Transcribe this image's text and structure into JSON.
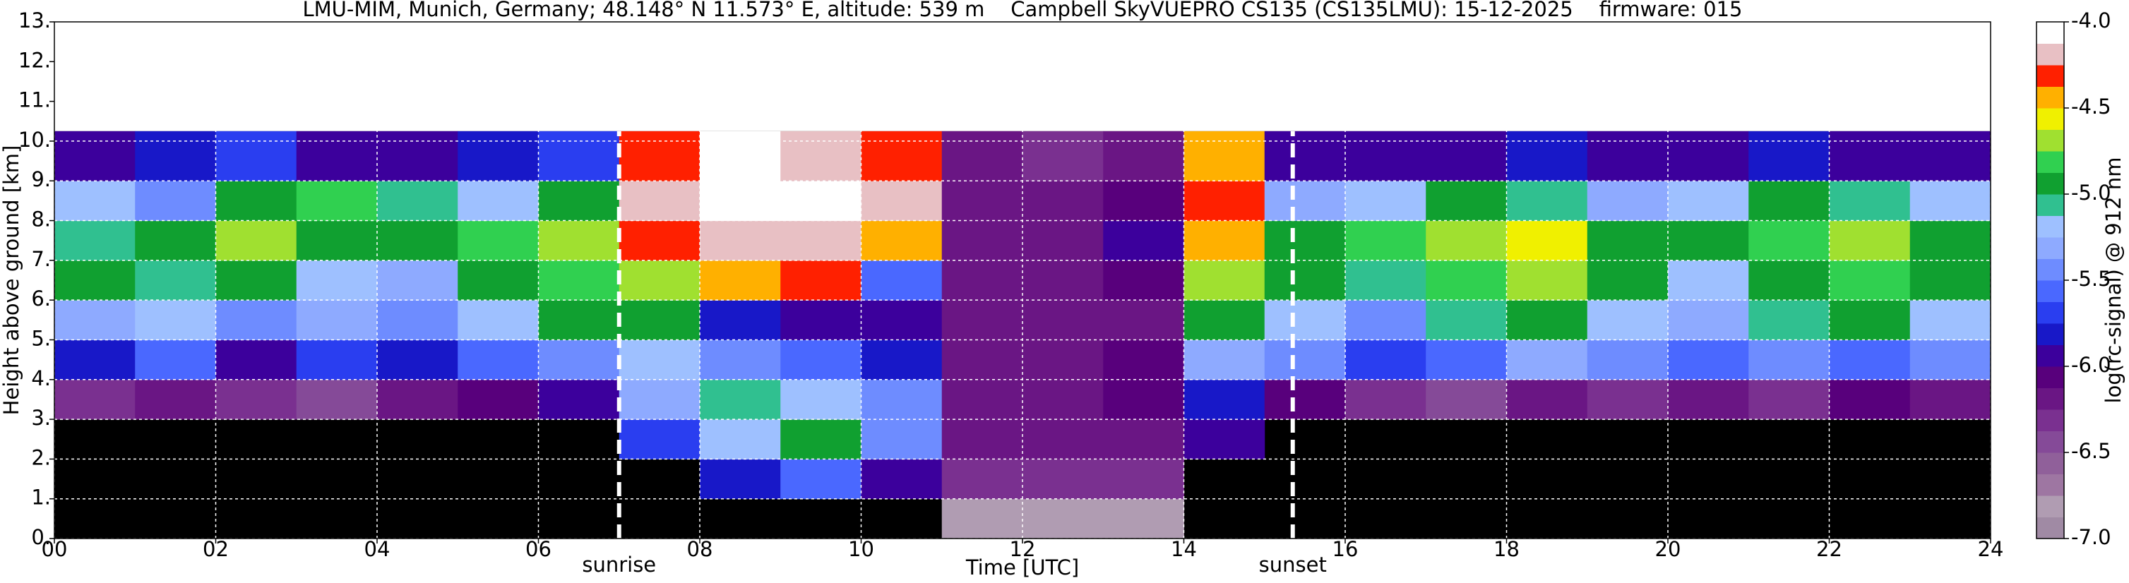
{
  "chart_data": {
    "type": "heatmap",
    "title": "LMU-MIM, Munich, Germany; 48.148° N 11.573° E, altitude: 539 m    Campbell SkyVUEPRO CS135 (CS135LMU): 15-12-2025    firmware: 015",
    "xlabel": "Time [UTC]",
    "ylabel": "Height above ground [km]",
    "xlim": [
      0,
      24
    ],
    "ylim": [
      0,
      13
    ],
    "xticks": [
      {
        "value": 0,
        "label": "00"
      },
      {
        "value": 2,
        "label": "02"
      },
      {
        "value": 4,
        "label": "04"
      },
      {
        "value": 6,
        "label": "06"
      },
      {
        "value": 8,
        "label": "08"
      },
      {
        "value": 10,
        "label": "10"
      },
      12,
      14,
      16,
      18,
      20,
      22,
      24
    ],
    "yticks": [
      {
        "value": 0,
        "label": "0."
      },
      {
        "value": 1,
        "label": "1."
      },
      {
        "value": 2,
        "label": "2."
      },
      {
        "value": 3,
        "label": "3."
      },
      {
        "value": 4,
        "label": "4."
      },
      {
        "value": 5,
        "label": "5."
      },
      {
        "value": 6,
        "label": "6."
      },
      {
        "value": 7,
        "label": "7."
      },
      {
        "value": 8,
        "label": "8."
      },
      {
        "value": 9,
        "label": "9."
      },
      {
        "value": 10,
        "label": "10."
      },
      {
        "value": 11,
        "label": "11."
      },
      {
        "value": 12,
        "label": "12."
      },
      {
        "value": 13,
        "label": "13."
      }
    ],
    "grid": true,
    "grid_color": "#ffffff",
    "no_data_color": "#000000",
    "x_edges": [
      0,
      1,
      2,
      3,
      4,
      5,
      6,
      7,
      8,
      9,
      10,
      11,
      12,
      13,
      14,
      15,
      16,
      17,
      18,
      19,
      20,
      21,
      22,
      23,
      24
    ],
    "y_edges": [
      0,
      1,
      2,
      3,
      4,
      5,
      6,
      7,
      8,
      9,
      10.25
    ],
    "z": [
      [
        null,
        null,
        null,
        null,
        null,
        null,
        null,
        null,
        null,
        null,
        null,
        -6.8,
        -6.8,
        -6.8,
        null,
        null,
        null,
        null,
        null,
        null,
        null,
        null,
        null,
        null
      ],
      [
        null,
        null,
        null,
        null,
        null,
        null,
        null,
        null,
        -5.8,
        -5.6,
        -5.9,
        -6.3,
        -6.3,
        -6.3,
        null,
        null,
        null,
        null,
        null,
        null,
        null,
        null,
        null,
        null
      ],
      [
        null,
        null,
        null,
        null,
        null,
        null,
        null,
        -5.7,
        -5.2,
        -5.0,
        -5.4,
        -6.2,
        -6.2,
        -6.2,
        -6.0,
        null,
        null,
        null,
        null,
        null,
        null,
        null,
        null,
        null
      ],
      [
        -6.3,
        -6.2,
        -6.3,
        -6.4,
        -6.2,
        -6.1,
        -6.0,
        -5.3,
        -5.1,
        -5.2,
        -5.5,
        -6.2,
        -6.2,
        -6.1,
        -5.8,
        -6.1,
        -6.3,
        -6.4,
        -6.2,
        -6.3,
        -6.2,
        -6.3,
        -6.1,
        -6.2
      ],
      [
        -5.8,
        -5.6,
        -5.9,
        -5.7,
        -5.8,
        -5.6,
        -5.4,
        -5.2,
        -5.5,
        -5.6,
        -5.8,
        -6.2,
        -6.2,
        -6.1,
        -5.3,
        -5.5,
        -5.7,
        -5.6,
        -5.3,
        -5.5,
        -5.6,
        -5.4,
        -5.6,
        -5.5
      ],
      [
        -5.3,
        -5.2,
        -5.4,
        -5.3,
        -5.5,
        -5.2,
        -5.0,
        -4.9,
        -5.8,
        -5.9,
        -6.0,
        -6.2,
        -6.2,
        -6.2,
        -4.9,
        -5.2,
        -5.4,
        -5.1,
        -5.0,
        -5.2,
        -5.3,
        -5.1,
        -5.0,
        -5.2
      ],
      [
        -5.0,
        -5.1,
        -4.9,
        -5.2,
        -5.3,
        -5.0,
        -4.8,
        -4.7,
        -4.4,
        -4.3,
        -5.6,
        -6.2,
        -6.2,
        -6.1,
        -4.7,
        -4.9,
        -5.1,
        -4.8,
        -4.7,
        -5.0,
        -5.2,
        -4.9,
        -4.8,
        -5.0
      ],
      [
        -5.1,
        -4.9,
        -4.7,
        -4.9,
        -5.0,
        -4.8,
        -4.7,
        -4.3,
        -4.2,
        -4.2,
        -4.4,
        -6.2,
        -6.2,
        -6.0,
        -4.4,
        -4.9,
        -4.8,
        -4.7,
        -4.6,
        -4.9,
        -5.0,
        -4.8,
        -4.7,
        -5.0
      ],
      [
        -5.2,
        -5.4,
        -5.0,
        -4.8,
        -5.1,
        -5.2,
        -5.0,
        -4.2,
        -4.1,
        -4.1,
        -4.2,
        -6.2,
        -6.2,
        -6.1,
        -4.3,
        -5.3,
        -5.2,
        -5.0,
        -5.1,
        -5.3,
        -5.2,
        -5.0,
        -5.1,
        -5.2
      ],
      [
        -5.9,
        -5.8,
        -5.7,
        -5.9,
        -6.0,
        -5.8,
        -5.7,
        -4.3,
        -4.1,
        -4.2,
        -4.3,
        -6.2,
        -6.3,
        -6.2,
        -4.4,
        -5.9,
        -6.0,
        -5.9,
        -5.8,
        -6.0,
        -5.9,
        -5.8,
        -5.9,
        -6.0
      ]
    ],
    "clim": [
      -7,
      -4
    ],
    "colors": [
      "#a08aa4",
      "#b09cb2",
      "#9e76a2",
      "#90609a",
      "#854a98",
      "#7a3090",
      "#6a1684",
      "#58007c",
      "#3c009c",
      "#1818c8",
      "#2a3ef0",
      "#4a68ff",
      "#6e8cff",
      "#8eaaff",
      "#9ec0ff",
      "#30c090",
      "#10a030",
      "#30d050",
      "#a0e030",
      "#f0f000",
      "#ffb000",
      "#ff2000",
      "#e8c0c4",
      "#ffffff"
    ],
    "colorbar_label": "log(rc-signal) @ 912 nm",
    "colorbar_ticks": [
      {
        "value": -4,
        "label": "-4.0"
      },
      {
        "value": -4.5,
        "label": "-4.5"
      },
      {
        "value": -5,
        "label": "-5.0"
      },
      {
        "value": -5.5,
        "label": "-5.5"
      },
      {
        "value": -6,
        "label": "-6.0"
      },
      {
        "value": -6.5,
        "label": "-6.5"
      },
      {
        "value": -7,
        "label": "-7.0"
      }
    ],
    "events": [
      {
        "x": 7.0,
        "label": "sunrise"
      },
      {
        "x": 15.35,
        "label": "sunset"
      }
    ]
  }
}
